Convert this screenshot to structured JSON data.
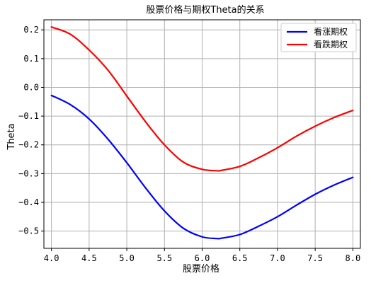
{
  "chart_data": {
    "type": "line",
    "title": "股票价格与期权Theta的关系",
    "xlabel": "股票价格",
    "ylabel": "Theta",
    "xlim": [
      3.9,
      8.1
    ],
    "ylim": [
      -0.56,
      0.235
    ],
    "xticks": [
      4.0,
      4.5,
      5.0,
      5.5,
      6.0,
      6.5,
      7.0,
      7.5,
      8.0
    ],
    "yticks": [
      -0.5,
      -0.4,
      -0.3,
      -0.2,
      -0.1,
      0.0,
      0.1,
      0.2
    ],
    "xtick_labels": [
      "4.0",
      "4.5",
      "5.0",
      "5.5",
      "6.0",
      "6.5",
      "7.0",
      "7.5",
      "8.0"
    ],
    "ytick_labels": [
      "−0.5",
      "−0.4",
      "−0.3",
      "−0.2",
      "−0.1",
      "0.0",
      "0.1",
      "0.2"
    ],
    "grid": true,
    "legend_position": "top-right",
    "series": [
      {
        "name": "看涨期权",
        "color": "#0000ff",
        "x": [
          4.0,
          4.25,
          4.5,
          4.75,
          5.0,
          5.25,
          5.5,
          5.75,
          6.0,
          6.2,
          6.25,
          6.5,
          6.75,
          7.0,
          7.25,
          7.5,
          7.75,
          8.0
        ],
        "y": [
          -0.028,
          -0.06,
          -0.11,
          -0.18,
          -0.262,
          -0.35,
          -0.43,
          -0.49,
          -0.52,
          -0.526,
          -0.525,
          -0.512,
          -0.483,
          -0.45,
          -0.41,
          -0.372,
          -0.34,
          -0.313
        ]
      },
      {
        "name": "看跌期权",
        "color": "#ff0000",
        "x": [
          4.0,
          4.25,
          4.5,
          4.75,
          5.0,
          5.25,
          5.5,
          5.75,
          6.0,
          6.2,
          6.25,
          6.5,
          6.75,
          7.0,
          7.25,
          7.5,
          7.75,
          8.0
        ],
        "y": [
          0.21,
          0.185,
          0.13,
          0.06,
          -0.03,
          -0.12,
          -0.2,
          -0.26,
          -0.285,
          -0.29,
          -0.289,
          -0.275,
          -0.245,
          -0.21,
          -0.17,
          -0.135,
          -0.105,
          -0.08
        ]
      }
    ]
  }
}
